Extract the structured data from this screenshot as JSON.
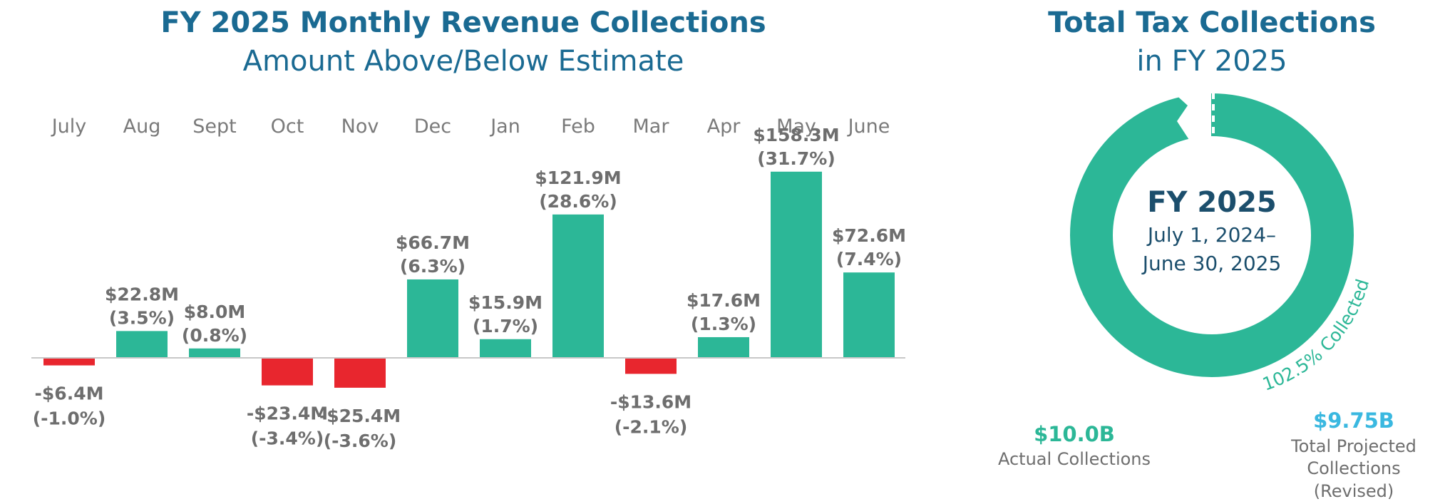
{
  "colors": {
    "title": "#1a6a92",
    "positive": "#2cb797",
    "negative": "#e8262e",
    "label": "#6e6e6e",
    "month": "#7a7a7a",
    "projected": "#3ab8e0",
    "center_text": "#1b4e6c"
  },
  "chart_data": [
    {
      "type": "bar",
      "title": "FY 2025 Monthly Revenue Collections",
      "subtitle": "Amount Above/Below Estimate",
      "categories": [
        "July",
        "Aug",
        "Sept",
        "Oct",
        "Nov",
        "Dec",
        "Jan",
        "Feb",
        "Mar",
        "Apr",
        "May",
        "June"
      ],
      "values": [
        -6.4,
        22.8,
        8.0,
        -23.4,
        -25.4,
        66.7,
        15.9,
        121.9,
        -13.6,
        17.6,
        158.3,
        72.6
      ],
      "value_labels": [
        "-$6.4M",
        "$22.8M",
        "$8.0M",
        "-$23.4M",
        "-$25.4M",
        "$66.7M",
        "$15.9M",
        "$121.9M",
        "-$13.6M",
        "$17.6M",
        "$158.3M",
        "$72.6M"
      ],
      "percent_labels": [
        "(-1.0%)",
        "(3.5%)",
        "(0.8%)",
        "(-3.4%)",
        "(-3.6%)",
        "(6.3%)",
        "(1.7%)",
        "(28.6%)",
        "(-2.1%)",
        "(1.3%)",
        "(31.7%)",
        "(7.4%)"
      ],
      "unit": "$M",
      "ylim": [
        -30,
        170
      ],
      "xlabel": "",
      "ylabel": "",
      "grid": false,
      "category_axis_position": "top"
    },
    {
      "type": "pie",
      "title": "Total Tax Collections",
      "subtitle": "in FY 2025",
      "center_title": "FY 2025",
      "center_line1": "July 1, 2024–",
      "center_line2": "June 30, 2025",
      "percent_collected": 102.5,
      "arc_label": "102.5% Collected",
      "actual_value": "$10.0B",
      "actual_label": "Actual Collections",
      "projected_value": "$9.75B",
      "projected_label_lines": [
        "Total Projected",
        "Collections",
        "(Revised)"
      ]
    }
  ]
}
